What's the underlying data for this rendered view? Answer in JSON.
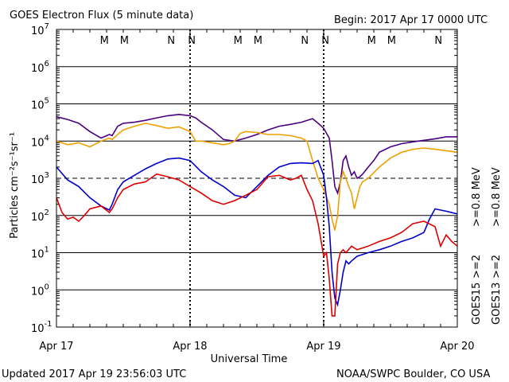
{
  "header": {
    "title": "GOES Electron Flux (5 minute data)",
    "begin": "Begin: 2017 Apr 17 0000 UTC"
  },
  "footer": {
    "updated": "Updated 2017 Apr 19 23:56:03 UTC",
    "credit": "NOAA/SWPC Boulder, CO USA"
  },
  "chart_data": {
    "type": "line",
    "title": "GOES Electron Flux (5 minute data)",
    "xlabel": "Universal Time",
    "ylabel": "Particles cm⁻²s⁻¹sr⁻¹",
    "y_scale": "log",
    "ylim": [
      0.1,
      10000000
    ],
    "xlim": [
      0,
      72
    ],
    "x_unit": "hours since 2017 Apr 17 0000 UTC",
    "x_ticks": [
      {
        "x": 0,
        "label": "Apr 17"
      },
      {
        "x": 24,
        "label": "Apr 18"
      },
      {
        "x": 48,
        "label": "Apr 19"
      },
      {
        "x": 72,
        "label": "Apr 20"
      }
    ],
    "y_ticks": [
      {
        "exp": -1,
        "base": "10",
        "sup": "-1"
      },
      {
        "exp": 0,
        "base": "10",
        "sup": "0"
      },
      {
        "exp": 1,
        "base": "10",
        "sup": "1"
      },
      {
        "exp": 2,
        "base": "10",
        "sup": "2"
      },
      {
        "exp": 3,
        "base": "10",
        "sup": "3"
      },
      {
        "exp": 4,
        "base": "10",
        "sup": "4"
      },
      {
        "exp": 5,
        "base": "10",
        "sup": "5"
      },
      {
        "exp": 6,
        "base": "10",
        "sup": "6"
      },
      {
        "exp": 7,
        "base": "10",
        "sup": "7"
      }
    ],
    "threshold_line": 1000,
    "grid": true,
    "markers": [
      {
        "x": 8.6,
        "label": "M",
        "color": "#dd0000"
      },
      {
        "x": 12.2,
        "label": "M",
        "color": "#0000cc"
      },
      {
        "x": 20.6,
        "label": "N",
        "color": "#dd0000"
      },
      {
        "x": 24.3,
        "label": "N",
        "color": "#0000cc"
      },
      {
        "x": 32.6,
        "label": "M",
        "color": "#dd0000"
      },
      {
        "x": 36.2,
        "label": "M",
        "color": "#0000cc"
      },
      {
        "x": 44.6,
        "label": "N",
        "color": "#dd0000"
      },
      {
        "x": 48.3,
        "label": "N",
        "color": "#0000cc"
      },
      {
        "x": 56.6,
        "label": "M",
        "color": "#dd0000"
      },
      {
        "x": 60.2,
        "label": "M",
        "color": "#0000cc"
      },
      {
        "x": 68.6,
        "label": "N",
        "color": "#dd0000"
      },
      {
        "x": 72.3,
        "label": "N",
        "color": "#0000cc"
      }
    ],
    "right_labels": [
      {
        "text": "GOES15",
        "color": "#000000",
        "col": 0,
        "row": 0
      },
      {
        "text": ">=2",
        "color": "#0000cc",
        "col": 0,
        "row": 1
      },
      {
        "text": ">=0.8 MeV",
        "color": "#4b0082",
        "col": 0,
        "row": 2
      },
      {
        "text": "GOES13",
        "color": "#000000",
        "col": 1,
        "row": 0
      },
      {
        "text": ">=2",
        "color": "#dd0000",
        "col": 1,
        "row": 1
      },
      {
        "text": ">=0.8 MeV",
        "color": "#f0a000",
        "col": 1,
        "row": 2
      }
    ],
    "series": [
      {
        "id": "g15_08",
        "color": "#4b0082",
        "x": [
          0,
          2,
          4,
          6,
          8,
          9.5,
          10,
          11,
          12,
          14,
          16,
          18,
          20,
          22,
          24,
          25,
          26,
          28,
          30,
          32,
          34,
          36,
          38,
          40,
          42,
          44,
          46,
          47,
          48,
          49,
          49.5,
          50,
          50.5,
          51,
          51.5,
          52,
          52.5,
          53,
          53.5,
          54,
          54.5,
          55,
          56,
          57,
          58,
          60,
          62,
          64,
          66,
          68,
          70,
          72
        ],
        "y": [
          45000,
          38000,
          30000,
          18000,
          12000,
          15000,
          14000,
          25000,
          30000,
          32000,
          36000,
          42000,
          48000,
          52000,
          48000,
          42000,
          32000,
          20000,
          11000,
          10000,
          12000,
          15000,
          20000,
          25000,
          28000,
          32000,
          40000,
          30000,
          22000,
          12000,
          3000,
          600,
          400,
          800,
          3000,
          4000,
          2000,
          1200,
          1500,
          1000,
          1100,
          1300,
          2000,
          3000,
          5000,
          7000,
          8500,
          9500,
          10500,
          11500,
          13000,
          13000
        ]
      },
      {
        "id": "g13_08",
        "color": "#f0a000",
        "x": [
          0,
          2,
          4,
          6,
          8,
          9.5,
          10,
          11,
          12,
          14,
          16,
          18,
          20,
          22,
          24,
          25,
          26,
          28,
          30,
          31,
          32,
          33,
          34,
          36,
          38,
          40,
          42,
          44,
          45,
          46,
          47,
          48,
          49,
          49.5,
          50,
          50.5,
          51,
          51.5,
          52,
          52.5,
          53,
          53.5,
          54,
          54.5,
          55,
          56,
          58,
          60,
          62,
          64,
          66,
          68,
          70,
          72
        ],
        "y": [
          10000,
          8000,
          9000,
          7000,
          10000,
          12000,
          11000,
          15000,
          20000,
          25000,
          30000,
          26000,
          22000,
          24000,
          18000,
          10000,
          10000,
          9000,
          8000,
          8500,
          10000,
          16000,
          18000,
          17000,
          15000,
          15000,
          14000,
          12000,
          10000,
          3000,
          1000,
          500,
          200,
          80,
          40,
          100,
          800,
          1500,
          1000,
          600,
          400,
          150,
          300,
          600,
          800,
          1000,
          2000,
          3500,
          5000,
          6000,
          6500,
          6000,
          5500,
          5000
        ]
      },
      {
        "id": "g15_2",
        "color": "#0000cc",
        "x": [
          0,
          2,
          4,
          6,
          8,
          9.5,
          10,
          11,
          12,
          14,
          16,
          18,
          20,
          22,
          24,
          26,
          28,
          30,
          32,
          34,
          36,
          38,
          40,
          42,
          44,
          46,
          47,
          48,
          48.5,
          49,
          49.5,
          50,
          50.5,
          51,
          51.5,
          52,
          52.5,
          53,
          54,
          56,
          58,
          60,
          62,
          64,
          66,
          67,
          68,
          70,
          72
        ],
        "y": [
          2000,
          900,
          600,
          300,
          180,
          140,
          200,
          500,
          800,
          1200,
          1800,
          2500,
          3300,
          3500,
          3000,
          1500,
          900,
          600,
          350,
          300,
          600,
          1200,
          2000,
          2500,
          2600,
          2500,
          3000,
          1200,
          300,
          50,
          3,
          0.6,
          0.4,
          1,
          3,
          6,
          5,
          6,
          8,
          10,
          12,
          15,
          20,
          25,
          35,
          80,
          150,
          130,
          110
        ]
      },
      {
        "id": "g13_2",
        "color": "#dd0000",
        "x": [
          0,
          1,
          2,
          3,
          4,
          5,
          6,
          8,
          9.5,
          10,
          11,
          12,
          14,
          16,
          18,
          20,
          22,
          24,
          26,
          28,
          30,
          32,
          34,
          36,
          38,
          40,
          42,
          43,
          44,
          45,
          46,
          47,
          48,
          48.5,
          49,
          49.5,
          50,
          50.5,
          51,
          51.5,
          52,
          53,
          54,
          56,
          58,
          60,
          62,
          64,
          66,
          68,
          69,
          70,
          71,
          72
        ],
        "y": [
          300,
          120,
          80,
          90,
          70,
          100,
          150,
          180,
          120,
          150,
          300,
          500,
          700,
          800,
          1300,
          1100,
          900,
          600,
          400,
          250,
          200,
          250,
          350,
          500,
          1100,
          1200,
          900,
          1000,
          1200,
          500,
          250,
          60,
          8,
          10,
          2,
          0.2,
          0.2,
          5,
          10,
          12,
          10,
          15,
          12,
          15,
          20,
          25,
          35,
          60,
          70,
          50,
          15,
          30,
          20,
          15
        ]
      }
    ]
  }
}
